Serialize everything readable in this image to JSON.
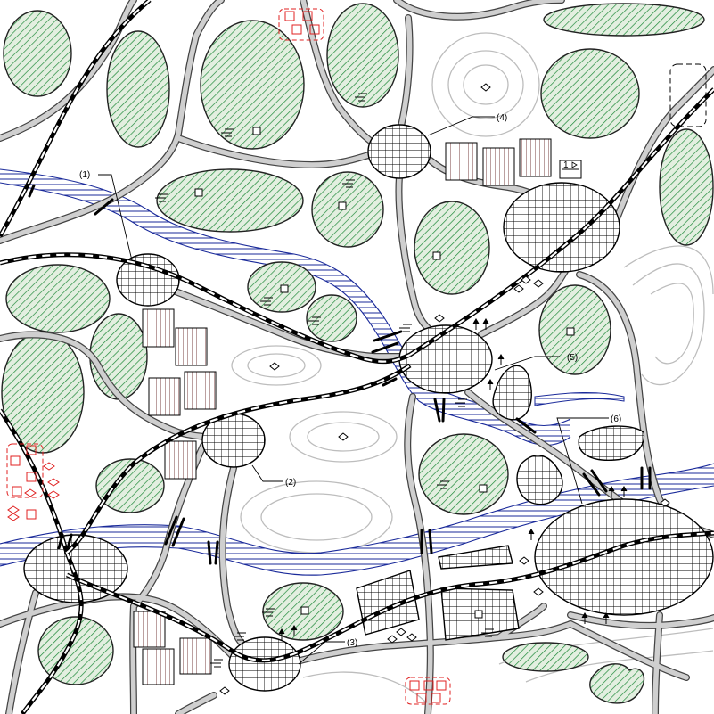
{
  "map": {
    "labels": [
      {
        "key": "1",
        "text": "(1)"
      },
      {
        "key": "2",
        "text": "(2)"
      },
      {
        "key": "3",
        "text": "(3)"
      },
      {
        "key": "4",
        "text": "(4)"
      },
      {
        "key": "5",
        "text": "(5)"
      },
      {
        "key": "6",
        "text": "(6)"
      }
    ],
    "symbols": {
      "marsh": "marsh-symbol",
      "building": "building-symbol",
      "elevation_point": "elevation-point-symbol",
      "fuel_station": "station-symbol",
      "highlighted_marker": "red-marker-group"
    },
    "sign_text": "1",
    "colors": {
      "forest_hatch": "#1f8a3a",
      "forest_fill": "#e3efe0",
      "water_lines": "#1a2a9a",
      "road_fill": "#cfcfcf",
      "road_casing": "#444444",
      "contour": "#bdbdbd",
      "highlight": "#e02020",
      "background": "#ffffff"
    }
  }
}
